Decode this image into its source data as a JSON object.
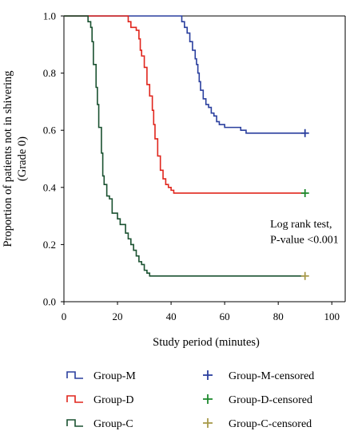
{
  "chart_data": {
    "type": "line",
    "subtype": "kaplan-meier step curves",
    "xlabel": "Study period (minutes)",
    "ylabel_line1": "Proportion of patients not in shivering",
    "ylabel_line2": "(Grade 0)",
    "xlim": [
      0,
      105
    ],
    "ylim": [
      0,
      1.0
    ],
    "x_ticks": [
      0,
      20,
      40,
      60,
      80,
      100
    ],
    "y_ticks": [
      0.0,
      0.2,
      0.4,
      0.6,
      0.8,
      1.0
    ],
    "x_tick_labels": [
      "0",
      "20",
      "40",
      "60",
      "80",
      "100"
    ],
    "y_tick_labels": [
      "0.0",
      "0.2",
      "0.4",
      "0.6",
      "0.8",
      "1.0"
    ],
    "grid": false,
    "annotation": {
      "line1": "Log rank test,",
      "line2": "P-value <0.001",
      "x": 77,
      "y_line1": 0.26,
      "y_line2": 0.205
    },
    "series": [
      {
        "name": "Group-M",
        "color": "#2a3f9e",
        "steps": [
          [
            0,
            1.0
          ],
          [
            44,
            0.98
          ],
          [
            45,
            0.96
          ],
          [
            46,
            0.94
          ],
          [
            47,
            0.91
          ],
          [
            48,
            0.88
          ],
          [
            49,
            0.85
          ],
          [
            49.5,
            0.83
          ],
          [
            50,
            0.8
          ],
          [
            50.5,
            0.77
          ],
          [
            51,
            0.74
          ],
          [
            52,
            0.71
          ],
          [
            53,
            0.69
          ],
          [
            54,
            0.68
          ],
          [
            55,
            0.66
          ],
          [
            56,
            0.65
          ],
          [
            57,
            0.63
          ],
          [
            58,
            0.62
          ],
          [
            60,
            0.61
          ],
          [
            66,
            0.6
          ],
          [
            68,
            0.59
          ],
          [
            90,
            0.59
          ]
        ],
        "censored": {
          "name": "Group-M-censored",
          "x": 90,
          "y": 0.59
        }
      },
      {
        "name": "Group-D",
        "color": "#e0251c",
        "steps": [
          [
            0,
            1.0
          ],
          [
            24,
            0.98
          ],
          [
            25,
            0.96
          ],
          [
            27,
            0.95
          ],
          [
            28,
            0.92
          ],
          [
            28.5,
            0.88
          ],
          [
            29,
            0.86
          ],
          [
            30,
            0.82
          ],
          [
            31,
            0.76
          ],
          [
            32,
            0.72
          ],
          [
            33,
            0.67
          ],
          [
            33.5,
            0.62
          ],
          [
            34,
            0.57
          ],
          [
            35,
            0.51
          ],
          [
            36,
            0.46
          ],
          [
            37,
            0.43
          ],
          [
            38,
            0.41
          ],
          [
            39,
            0.4
          ],
          [
            40,
            0.39
          ],
          [
            41,
            0.38
          ],
          [
            90,
            0.38
          ]
        ],
        "censored": {
          "name": "Group-D-censored",
          "x": 90,
          "y": 0.38
        }
      },
      {
        "name": "Group-C",
        "color": "#1a5130",
        "steps": [
          [
            0,
            1.0
          ],
          [
            9,
            0.98
          ],
          [
            10,
            0.96
          ],
          [
            10.5,
            0.91
          ],
          [
            11,
            0.83
          ],
          [
            12,
            0.75
          ],
          [
            12.5,
            0.69
          ],
          [
            13,
            0.61
          ],
          [
            14,
            0.52
          ],
          [
            14.5,
            0.44
          ],
          [
            15,
            0.41
          ],
          [
            16,
            0.37
          ],
          [
            17,
            0.36
          ],
          [
            18,
            0.31
          ],
          [
            20,
            0.29
          ],
          [
            21,
            0.27
          ],
          [
            23,
            0.24
          ],
          [
            24,
            0.22
          ],
          [
            25,
            0.2
          ],
          [
            26,
            0.18
          ],
          [
            27,
            0.16
          ],
          [
            28,
            0.14
          ],
          [
            29,
            0.13
          ],
          [
            30,
            0.11
          ],
          [
            31,
            0.1
          ],
          [
            32,
            0.09
          ],
          [
            90,
            0.09
          ]
        ],
        "censored": {
          "name": "Group-C-censored",
          "x": 90,
          "y": 0.09
        }
      }
    ],
    "censored_colors": {
      "Group-M-censored": "#2a3f9e",
      "Group-D-censored": "#1e8a2e",
      "Group-C-censored": "#a89a4a"
    },
    "legend": {
      "placement": "bottom",
      "left": [
        "Group-M",
        "Group-D",
        "Group-C"
      ],
      "right": [
        "Group-M-censored",
        "Group-D-censored",
        "Group-C-censored"
      ]
    }
  }
}
